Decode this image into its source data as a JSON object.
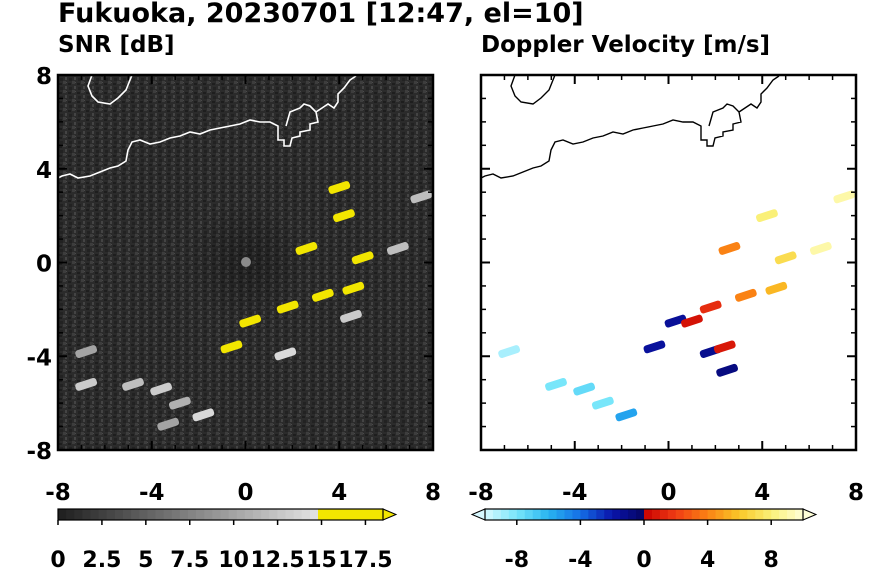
{
  "header": {
    "title": "Fukuoka, 20230701 [12:47, el=10]"
  },
  "panels": [
    {
      "subtitle": "SNR [dB]"
    },
    {
      "subtitle": "Doppler Velocity [m/s]"
    }
  ],
  "colors": {
    "snr_echo": "#f2e600",
    "coastline_left": "#ffffff",
    "coastline_right": "#000000",
    "noise_background": "#2b2b2b"
  },
  "chart_data": [
    {
      "type": "heatmap",
      "title": "SNR [dB]",
      "xlabel": "",
      "ylabel": "",
      "xlim": [
        -8,
        8
      ],
      "ylim": [
        -8,
        8
      ],
      "x_ticks": [
        "-8",
        "-4",
        "0",
        "4",
        "8"
      ],
      "y_ticks": [
        "-8",
        "-4",
        "0",
        "4",
        "8"
      ],
      "colorbar": {
        "min": 0,
        "max": 18.5,
        "extend": "max",
        "tick_labels": [
          "0",
          "2.5",
          "5",
          "7.5",
          "10",
          "12.5",
          "15",
          "17.5"
        ]
      },
      "echoes": [
        {
          "x": 0.2,
          "y": -2.5,
          "v": 18
        },
        {
          "x": 1.8,
          "y": -1.9,
          "v": 18
        },
        {
          "x": 3.3,
          "y": -1.4,
          "v": 18
        },
        {
          "x": 4.6,
          "y": -1.1,
          "v": 18
        },
        {
          "x": 5.0,
          "y": 0.2,
          "v": 18
        },
        {
          "x": 2.6,
          "y": 0.6,
          "v": 18
        },
        {
          "x": 4.2,
          "y": 2.0,
          "v": 16
        },
        {
          "x": 4.0,
          "y": 3.2,
          "v": 17
        },
        {
          "x": -0.6,
          "y": -3.6,
          "v": 17
        },
        {
          "x": 1.7,
          "y": -3.9,
          "v": 14
        },
        {
          "x": 4.5,
          "y": -2.3,
          "v": 13
        },
        {
          "x": 7.5,
          "y": 2.8,
          "v": 12
        },
        {
          "x": 6.5,
          "y": 0.6,
          "v": 12
        },
        {
          "x": -4.8,
          "y": -5.2,
          "v": 12
        },
        {
          "x": -3.6,
          "y": -5.4,
          "v": 13
        },
        {
          "x": -6.8,
          "y": -5.2,
          "v": 13
        },
        {
          "x": -2.8,
          "y": -6.0,
          "v": 11
        },
        {
          "x": -1.8,
          "y": -6.5,
          "v": 14
        },
        {
          "x": -3.3,
          "y": -6.9,
          "v": 10
        },
        {
          "x": -6.8,
          "y": -3.8,
          "v": 10
        }
      ]
    },
    {
      "type": "heatmap",
      "title": "Doppler Velocity [m/s]",
      "xlabel": "",
      "ylabel": "",
      "xlim": [
        -8,
        8
      ],
      "ylim": [
        -8,
        8
      ],
      "x_ticks": [
        "-8",
        "-4",
        "0",
        "4",
        "8"
      ],
      "y_ticks": [],
      "colorbar": {
        "min": -10,
        "max": 10,
        "extend": "both",
        "tick_labels": [
          "-8",
          "-4",
          "0",
          "4",
          "8"
        ]
      },
      "echoes": [
        {
          "x": 1.8,
          "y": -1.9,
          "v": 1.5
        },
        {
          "x": 3.3,
          "y": -1.4,
          "v": 4
        },
        {
          "x": 4.6,
          "y": -1.1,
          "v": 5.5
        },
        {
          "x": 5.0,
          "y": 0.2,
          "v": 7
        },
        {
          "x": 2.6,
          "y": 0.6,
          "v": 4
        },
        {
          "x": 4.2,
          "y": 2.0,
          "v": 8
        },
        {
          "x": 7.5,
          "y": 2.8,
          "v": 9
        },
        {
          "x": 0.3,
          "y": -2.5,
          "v": -1.5
        },
        {
          "x": 1.0,
          "y": -2.5,
          "v": 0.6
        },
        {
          "x": -0.6,
          "y": -3.6,
          "v": -1.6
        },
        {
          "x": 1.8,
          "y": -3.8,
          "v": -1.2
        },
        {
          "x": 2.5,
          "y": -4.6,
          "v": -0.8
        },
        {
          "x": 2.4,
          "y": -3.6,
          "v": 0.8
        },
        {
          "x": 6.5,
          "y": 0.6,
          "v": 9
        },
        {
          "x": -4.8,
          "y": -5.2,
          "v": -8
        },
        {
          "x": -3.6,
          "y": -5.4,
          "v": -7.5
        },
        {
          "x": -2.8,
          "y": -6.0,
          "v": -8
        },
        {
          "x": -1.8,
          "y": -6.5,
          "v": -5.5
        },
        {
          "x": -6.8,
          "y": -3.8,
          "v": -9
        }
      ]
    }
  ]
}
